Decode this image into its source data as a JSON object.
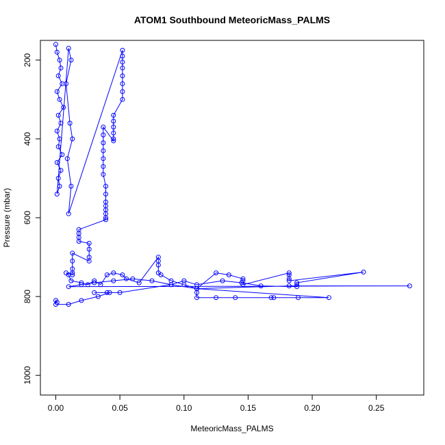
{
  "chart_data": {
    "type": "scatter",
    "title": "ATOM1 Southbound MeteoricMass_PALMS",
    "xlabel": "MeteoricMass_PALMS",
    "ylabel": "Pressure (mbar)",
    "xlim": [
      -0.012,
      0.287
    ],
    "ylim": [
      1050,
      150
    ],
    "y_reversed": true,
    "x_ticks": [
      0.0,
      0.05,
      0.1,
      0.15,
      0.2,
      0.25
    ],
    "x_tick_labels": [
      "0.00",
      "0.05",
      "0.10",
      "0.15",
      "0.20",
      "0.25"
    ],
    "y_ticks": [
      200,
      400,
      600,
      800,
      1000
    ],
    "y_tick_labels": [
      "200",
      "400",
      "600",
      "800",
      "1000"
    ],
    "grid": false,
    "legend": "none",
    "marker": "open-circle",
    "connected": true,
    "color": "#0000ff",
    "series": [
      {
        "name": "",
        "x": [
          0.0,
          0.001,
          0.003,
          0.004,
          0.002,
          0.005,
          0.001,
          0.003,
          0.006,
          0.002,
          0.004,
          0.001,
          0.003,
          0.002,
          0.005,
          0.001,
          0.004,
          0.002,
          0.003,
          0.001,
          0.01,
          0.012,
          0.008,
          0.011,
          0.013,
          0.009,
          0.012,
          0.01,
          0.052,
          0.052,
          0.052,
          0.052,
          0.052,
          0.052,
          0.052,
          0.052,
          0.045,
          0.045,
          0.045,
          0.045,
          0.045,
          0.045,
          0.037,
          0.037,
          0.037,
          0.037,
          0.037,
          0.037,
          0.037,
          0.039,
          0.039,
          0.039,
          0.039,
          0.039,
          0.039,
          0.039,
          0.039,
          0.018,
          0.018,
          0.018,
          0.018,
          0.026,
          0.026,
          0.026,
          0.026,
          0.013,
          0.013,
          0.013,
          0.013,
          0.013,
          0.008,
          0.01,
          0.012,
          0.02,
          0.025,
          0.03,
          0.035,
          0.04,
          0.045,
          0.052,
          0.055,
          0.065,
          0.08,
          0.08,
          0.08,
          0.08,
          0.082,
          0.09,
          0.1,
          0.11,
          0.125,
          0.135,
          0.146,
          0.146,
          0.146,
          0.182,
          0.182,
          0.182,
          0.182,
          0.24,
          0.188,
          0.188,
          0.188,
          0.16,
          0.145,
          0.13,
          0.11,
          0.1,
          0.09,
          0.075,
          0.06,
          0.045,
          0.03,
          0.02,
          0.01,
          0.276,
          0.182,
          0.11,
          0.11,
          0.11,
          0.125,
          0.14,
          0.168,
          0.17,
          0.189,
          0.213,
          0.11,
          0.09,
          0.05,
          0.03,
          0.04,
          0.042,
          0.033,
          0.02,
          0.01,
          0.0,
          0.0,
          0.001
        ],
        "y": [
          160,
          180,
          200,
          220,
          240,
          260,
          280,
          300,
          320,
          340,
          360,
          380,
          400,
          420,
          440,
          460,
          480,
          500,
          520,
          540,
          170,
          200,
          260,
          360,
          400,
          450,
          520,
          590,
          175,
          190,
          205,
          220,
          240,
          260,
          280,
          300,
          340,
          355,
          370,
          385,
          400,
          405,
          370,
          390,
          410,
          430,
          450,
          470,
          490,
          520,
          540,
          560,
          570,
          580,
          590,
          600,
          605,
          630,
          640,
          650,
          660,
          665,
          680,
          700,
          710,
          690,
          710,
          730,
          740,
          745,
          740,
          745,
          760,
          765,
          770,
          760,
          770,
          745,
          740,
          745,
          755,
          765,
          700,
          710,
          720,
          740,
          745,
          760,
          770,
          780,
          740,
          745,
          755,
          760,
          770,
          740,
          745,
          755,
          760,
          738,
          765,
          770,
          775,
          773,
          765,
          760,
          770,
          760,
          770,
          760,
          755,
          760,
          765,
          770,
          775,
          773,
          773,
          780,
          790,
          803,
          803,
          803,
          803,
          803,
          803,
          803,
          780,
          770,
          790,
          790,
          790,
          790,
          800,
          810,
          820,
          820,
          810,
          815
        ]
      }
    ]
  }
}
